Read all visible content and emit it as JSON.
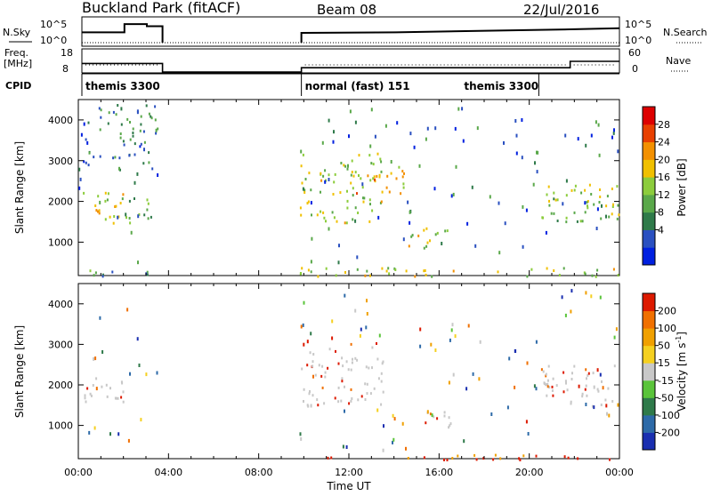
{
  "header": {
    "station": "Buckland Park (fitACF)",
    "beam": "Beam 08",
    "date": "22/Jul/2016"
  },
  "strips": {
    "nsky_label": "N.Sky",
    "nsky_ticks": [
      "10^5",
      "10^0"
    ],
    "nsearch_label": "N.Search",
    "nsearch_ticks": [
      "10^5",
      "10^0"
    ],
    "freq_label_1": "Freq.",
    "freq_label_2": "[MHz]",
    "freq_ticks": [
      "18",
      "8"
    ],
    "nave_label": "Nave",
    "nave_ticks": [
      "60",
      "0"
    ],
    "cpid_label": "CPID",
    "cpid_segments": [
      {
        "text": "themis 3300",
        "start_h": 0,
        "end_h": 3.6
      },
      {
        "text": "normal (fast) 151",
        "start_h": 9.8,
        "end_h": 20.4
      },
      {
        "text": "themis 3300",
        "start_h": 20.4,
        "end_h": 24
      }
    ],
    "nsky_level_log": [
      {
        "h": 0,
        "v": 2.0
      },
      {
        "h": 1.9,
        "v": 2.0
      },
      {
        "h": 1.9,
        "v": 3.6
      },
      {
        "h": 2.9,
        "v": 3.6
      },
      {
        "h": 2.9,
        "v": 3.2
      },
      {
        "h": 3.6,
        "v": 3.2
      },
      {
        "h": 3.6,
        "v": 0
      },
      {
        "h": 9.8,
        "v": 0
      },
      {
        "h": 9.8,
        "v": 1.9
      },
      {
        "h": 14,
        "v": 2.0
      },
      {
        "h": 18,
        "v": 2.3
      },
      {
        "h": 22,
        "v": 2.6
      },
      {
        "h": 24,
        "v": 2.8
      }
    ],
    "freq_level": [
      {
        "h": 0,
        "v": 12
      },
      {
        "h": 3.6,
        "v": 12
      },
      {
        "h": 3.6,
        "v": 8
      },
      {
        "h": 9.8,
        "v": 8
      },
      {
        "h": 9.8,
        "v": 10
      },
      {
        "h": 21.8,
        "v": 10
      },
      {
        "h": 21.8,
        "v": 13
      },
      {
        "h": 24,
        "v": 13
      }
    ]
  },
  "chart_data": [
    {
      "type": "heatmap",
      "panel": "power",
      "xlabel": "Time UT",
      "ylabel": "Slant Range [km]",
      "xlim": [
        0,
        24
      ],
      "ylim": [
        180,
        4500
      ],
      "x_ticks": [
        "00:00",
        "04:00",
        "08:00",
        "12:00",
        "16:00",
        "20:00",
        "00:00"
      ],
      "y_ticks": [
        "1000",
        "2000",
        "3000",
        "4000"
      ],
      "colorbar_label": "Power [dB]",
      "colorbar_ticks": [
        "28",
        "24",
        "20",
        "16",
        "12",
        "8",
        "4"
      ],
      "colorbar_range": [
        0,
        30
      ],
      "colors": [
        "#0020e0",
        "#2a50c0",
        "#2f7a4a",
        "#5aa84a",
        "#8ccc3c",
        "#f0c000",
        "#f39000",
        "#e84000",
        "#dd0000"
      ],
      "data_gaps_h": [
        [
          3.6,
          9.8
        ]
      ],
      "echo_regions": [
        {
          "t0": 0.2,
          "t1": 2.1,
          "r0": 1450,
          "r1": 2300,
          "level": 18
        },
        {
          "t0": 0.2,
          "t1": 3.5,
          "r0": 2800,
          "r1": 4400,
          "level": 7
        },
        {
          "t0": 2.2,
          "t1": 3.2,
          "r0": 1500,
          "r1": 2200,
          "level": 9
        },
        {
          "t0": 9.8,
          "t1": 13.5,
          "r0": 1500,
          "r1": 3200,
          "level": 16
        },
        {
          "t0": 12.3,
          "t1": 14.6,
          "r0": 2200,
          "r1": 2900,
          "level": 20
        },
        {
          "t0": 14.6,
          "t1": 16.5,
          "r0": 800,
          "r1": 1400,
          "level": 16
        },
        {
          "t0": 20.5,
          "t1": 24,
          "r0": 1500,
          "r1": 2500,
          "level": 14
        },
        {
          "t0": 9.8,
          "t1": 24,
          "r0": 180,
          "r1": 400,
          "level": 16
        },
        {
          "t0": 0,
          "t1": 3.6,
          "r0": 180,
          "r1": 350,
          "level": 8
        }
      ]
    },
    {
      "type": "heatmap",
      "panel": "velocity",
      "xlabel": "Time UT",
      "ylabel": "Slant Range [km]",
      "xlim": [
        0,
        24
      ],
      "ylim": [
        180,
        4500
      ],
      "x_ticks": [
        "00:00",
        "04:00",
        "08:00",
        "12:00",
        "16:00",
        "20:00",
        "00:00"
      ],
      "y_ticks": [
        "1000",
        "2000",
        "3000",
        "4000"
      ],
      "colorbar_label": "Velocity [m s",
      "colorbar_label_sup": "-1",
      "colorbar_label_end": "]",
      "colorbar_ticks": [
        "200",
        "100",
        "50",
        "15",
        "-15",
        "-50",
        "-100",
        "-200"
      ],
      "colors": [
        "#1a2fb0",
        "#2d6aa8",
        "#2f7a4a",
        "#5ac43a",
        "#c8c8c8",
        "#f5d020",
        "#f0a000",
        "#f07000",
        "#dd1a00"
      ],
      "data_gaps_h": [
        [
          3.6,
          9.8
        ]
      ],
      "echo_regions": [
        {
          "t0": 0.2,
          "t1": 2.1,
          "r0": 1450,
          "r1": 2300,
          "level": 4
        },
        {
          "t0": 9.8,
          "t1": 13.5,
          "r0": 1500,
          "r1": 3100,
          "level": 4
        },
        {
          "t0": 14.6,
          "t1": 16.5,
          "r0": 800,
          "r1": 1400,
          "level": 4
        },
        {
          "t0": 20.5,
          "t1": 24,
          "r0": 1500,
          "r1": 2500,
          "level": 4
        },
        {
          "t0": 9.8,
          "t1": 24,
          "r0": 180,
          "r1": 300,
          "level": 8
        }
      ]
    }
  ]
}
